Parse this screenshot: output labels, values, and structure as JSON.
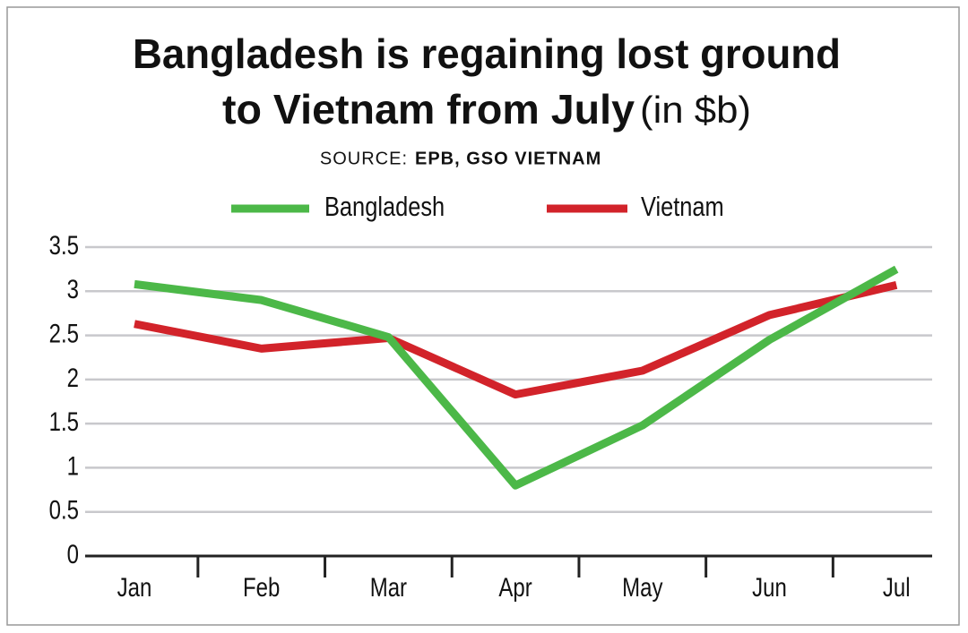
{
  "chart_data": {
    "type": "line",
    "title_line1": "Bangladesh is regaining lost ground",
    "title_line2": "to Vietnam from July",
    "title_unit": "(in $b)",
    "source_label": "SOURCE:",
    "source": "EPB, GSO VIETNAM",
    "categories": [
      "Jan",
      "Feb",
      "Mar",
      "Apr",
      "May",
      "Jun",
      "Jul"
    ],
    "series": [
      {
        "name": "Bangladesh",
        "color": "#4cb848",
        "values": [
          3.08,
          2.9,
          2.48,
          0.8,
          1.48,
          2.45,
          3.25
        ]
      },
      {
        "name": "Vietnam",
        "color": "#d2232a",
        "values": [
          2.63,
          2.35,
          2.47,
          1.83,
          2.1,
          2.73,
          3.07
        ]
      }
    ],
    "ylim": [
      0,
      3.5
    ],
    "yticks": [
      0,
      0.5,
      1,
      1.5,
      2,
      2.5,
      3,
      3.5
    ],
    "grid": true
  }
}
